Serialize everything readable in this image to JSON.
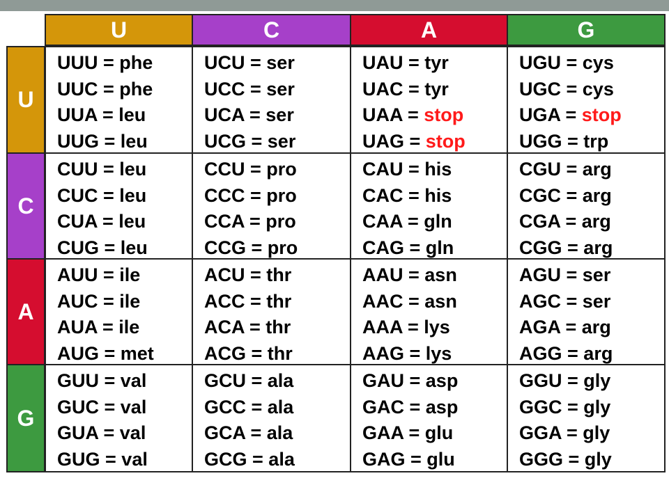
{
  "colors": {
    "U": "#d4960a",
    "C": "#a640c9",
    "A": "#d50d2f",
    "G": "#3d9a40",
    "stop": "#ff1a1a",
    "top_bar": "#8f9a96"
  },
  "column_headers": [
    "U",
    "C",
    "A",
    "G"
  ],
  "row_headers": [
    "U",
    "C",
    "A",
    "G"
  ],
  "rows": [
    [
      [
        [
          "UUU",
          "phe"
        ],
        [
          "UUC",
          "phe"
        ],
        [
          "UUA",
          "leu"
        ],
        [
          "UUG",
          "leu"
        ]
      ],
      [
        [
          "UCU",
          "ser"
        ],
        [
          "UCC",
          "ser"
        ],
        [
          "UCA",
          "ser"
        ],
        [
          "UCG",
          "ser"
        ]
      ],
      [
        [
          "UAU",
          "tyr"
        ],
        [
          "UAC",
          "tyr"
        ],
        [
          "UAA",
          "stop"
        ],
        [
          "UAG",
          "stop"
        ]
      ],
      [
        [
          "UGU",
          "cys"
        ],
        [
          "UGC",
          "cys"
        ],
        [
          "UGA",
          "stop"
        ],
        [
          "UGG",
          "trp"
        ]
      ]
    ],
    [
      [
        [
          "CUU",
          "leu"
        ],
        [
          "CUC",
          "leu"
        ],
        [
          "CUA",
          "leu"
        ],
        [
          "CUG",
          "leu"
        ]
      ],
      [
        [
          "CCU",
          "pro"
        ],
        [
          "CCC",
          "pro"
        ],
        [
          "CCA",
          "pro"
        ],
        [
          "CCG",
          "pro"
        ]
      ],
      [
        [
          "CAU",
          "his"
        ],
        [
          "CAC",
          "his"
        ],
        [
          "CAA",
          "gln"
        ],
        [
          "CAG",
          "gln"
        ]
      ],
      [
        [
          "CGU",
          "arg"
        ],
        [
          "CGC",
          "arg"
        ],
        [
          "CGA",
          "arg"
        ],
        [
          "CGG",
          "arg"
        ]
      ]
    ],
    [
      [
        [
          "AUU",
          "ile"
        ],
        [
          "AUC",
          "ile"
        ],
        [
          "AUA",
          "ile"
        ],
        [
          "AUG",
          "met"
        ]
      ],
      [
        [
          "ACU",
          "thr"
        ],
        [
          "ACC",
          "thr"
        ],
        [
          "ACA",
          "thr"
        ],
        [
          "ACG",
          "thr"
        ]
      ],
      [
        [
          "AAU",
          "asn"
        ],
        [
          "AAC",
          "asn"
        ],
        [
          "AAA",
          "lys"
        ],
        [
          "AAG",
          "lys"
        ]
      ],
      [
        [
          "AGU",
          "ser"
        ],
        [
          "AGC",
          "ser"
        ],
        [
          "AGA",
          "arg"
        ],
        [
          "AGG",
          "arg"
        ]
      ]
    ],
    [
      [
        [
          "GUU",
          "val"
        ],
        [
          "GUC",
          "val"
        ],
        [
          "GUA",
          "val"
        ],
        [
          "GUG",
          "val"
        ]
      ],
      [
        [
          "GCU",
          "ala"
        ],
        [
          "GCC",
          "ala"
        ],
        [
          "GCA",
          "ala"
        ],
        [
          "GCG",
          "ala"
        ]
      ],
      [
        [
          "GAU",
          "asp"
        ],
        [
          "GAC",
          "asp"
        ],
        [
          "GAA",
          "glu"
        ],
        [
          "GAG",
          "glu"
        ]
      ],
      [
        [
          "GGU",
          "gly"
        ],
        [
          "GGC",
          "gly"
        ],
        [
          "GGA",
          "gly"
        ],
        [
          "GGG",
          "gly"
        ]
      ]
    ]
  ]
}
